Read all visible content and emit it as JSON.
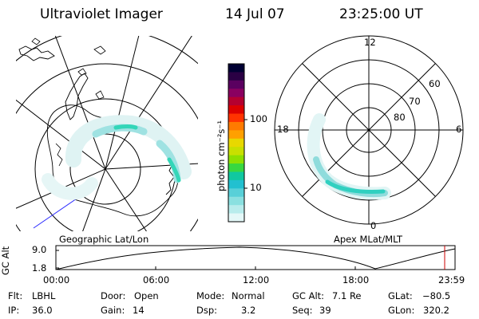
{
  "header": {
    "instrument": "Ultraviolet Imager",
    "date": "14 Jul 07",
    "time": "23:25:00 UT"
  },
  "left_map": {
    "label": "Geographic Lat/Lon"
  },
  "right_map": {
    "label": "Apex MLat/MLT",
    "mlt_labels": [
      "12",
      "18",
      "6",
      "0"
    ],
    "lat_labels": [
      "60",
      "70",
      "80"
    ]
  },
  "colorbar": {
    "title": "photon cm⁻²s⁻¹",
    "tick_labels": [
      "100",
      "10"
    ],
    "colors": [
      "#000033",
      "#2a0044",
      "#5a0060",
      "#8a0060",
      "#b40030",
      "#dc0000",
      "#ff3300",
      "#ff7a00",
      "#ffa000",
      "#e8d800",
      "#c8e000",
      "#8ee000",
      "#38d840",
      "#10c8a0",
      "#22c0d0",
      "#58d0d8",
      "#8ae0e0",
      "#b8ecec",
      "#e4f8f8"
    ]
  },
  "altitude_plot": {
    "ylabel": "GC Alt",
    "y_ticks": [
      "9.0",
      "1.8"
    ],
    "x_ticks": [
      "00:00",
      "06:00",
      "12:00",
      "18:00",
      "23:59"
    ],
    "marker_color": "#cc0000"
  },
  "footer": {
    "flt_label": "Flt:",
    "flt_value": "LBHL",
    "ip_label": "IP:",
    "ip_value": "36.0",
    "door_label": "Door:",
    "door_value": "Open",
    "gain_label": "Gain:",
    "gain_value": "14",
    "mode_label": "Mode:",
    "mode_value": "Normal",
    "dsp_label": "Dsp:",
    "dsp_value": "3.2",
    "gcalt_label": "GC Alt:",
    "gcalt_value": "7.1 Re",
    "seq_label": "Seq:",
    "seq_value": "39",
    "glat_label": "GLat:",
    "glat_value": "−80.5",
    "glon_label": "GLon:",
    "glon_value": "320.2"
  }
}
